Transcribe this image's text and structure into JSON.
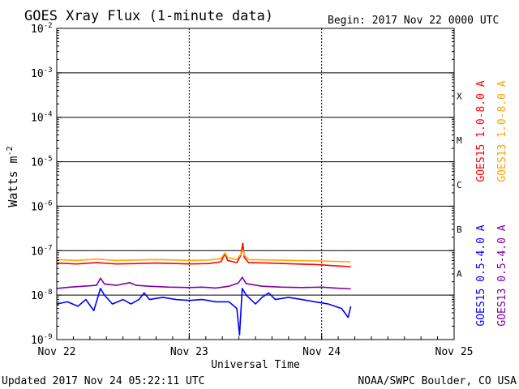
{
  "chart_data": {
    "type": "line",
    "title": "GOES Xray Flux (1-minute data)",
    "begin": "Begin:  2017 Nov 22 0000 UTC",
    "xlabel": "Universal Time",
    "ylabel": "Watts m",
    "ylabel_sup": "-2",
    "y_scale": "log",
    "ylim": [
      1e-09,
      0.01
    ],
    "xlim": [
      0,
      3
    ],
    "x_ticks": [
      {
        "x": 0,
        "label": "Nov 22"
      },
      {
        "x": 1,
        "label": "Nov 23"
      },
      {
        "x": 2,
        "label": "Nov 24"
      },
      {
        "x": 3,
        "label": "Nov 25"
      }
    ],
    "y_ticks": [
      {
        "exp": -9,
        "base": "10",
        "sup": "-9"
      },
      {
        "exp": -8,
        "base": "10",
        "sup": "-8"
      },
      {
        "exp": -7,
        "base": "10",
        "sup": "-7"
      },
      {
        "exp": -6,
        "base": "10",
        "sup": "-6"
      },
      {
        "exp": -5,
        "base": "10",
        "sup": "-5"
      },
      {
        "exp": -4,
        "base": "10",
        "sup": "-4"
      },
      {
        "exp": -3,
        "base": "10",
        "sup": "-3"
      },
      {
        "exp": -2,
        "base": "10",
        "sup": "-2"
      }
    ],
    "flare_classes": [
      {
        "label": "A",
        "exp": -7.5
      },
      {
        "label": "B",
        "exp": -6.5
      },
      {
        "label": "C",
        "exp": -5.5
      },
      {
        "label": "M",
        "exp": -4.5
      },
      {
        "label": "X",
        "exp": -3.5
      }
    ],
    "grid": true,
    "series": [
      {
        "name": "GOES15 1.0-8.0 A",
        "color": "#ff0000",
        "points": [
          [
            0,
            -7.28
          ],
          [
            0.15,
            -7.3
          ],
          [
            0.3,
            -7.27
          ],
          [
            0.45,
            -7.3
          ],
          [
            0.6,
            -7.29
          ],
          [
            0.75,
            -7.28
          ],
          [
            0.9,
            -7.29
          ],
          [
            1.0,
            -7.3
          ],
          [
            1.15,
            -7.29
          ],
          [
            1.24,
            -7.25
          ],
          [
            1.27,
            -7.07
          ],
          [
            1.29,
            -7.22
          ],
          [
            1.36,
            -7.27
          ],
          [
            1.39,
            -7.1
          ],
          [
            1.405,
            -6.83
          ],
          [
            1.415,
            -7.15
          ],
          [
            1.45,
            -7.27
          ],
          [
            1.6,
            -7.28
          ],
          [
            1.8,
            -7.3
          ],
          [
            1.95,
            -7.31
          ],
          [
            2.1,
            -7.34
          ],
          [
            2.22,
            -7.36
          ]
        ]
      },
      {
        "name": "GOES13 1.0-8.0 A",
        "color": "#ffa500",
        "points": [
          [
            0,
            -7.2
          ],
          [
            0.15,
            -7.22
          ],
          [
            0.3,
            -7.19
          ],
          [
            0.45,
            -7.22
          ],
          [
            0.6,
            -7.21
          ],
          [
            0.75,
            -7.2
          ],
          [
            0.9,
            -7.21
          ],
          [
            1.0,
            -7.22
          ],
          [
            1.15,
            -7.21
          ],
          [
            1.24,
            -7.18
          ],
          [
            1.27,
            -7.05
          ],
          [
            1.29,
            -7.15
          ],
          [
            1.36,
            -7.2
          ],
          [
            1.39,
            -7.08
          ],
          [
            1.405,
            -6.98
          ],
          [
            1.415,
            -7.1
          ],
          [
            1.45,
            -7.2
          ],
          [
            1.6,
            -7.21
          ],
          [
            1.8,
            -7.22
          ],
          [
            1.95,
            -7.23
          ],
          [
            2.1,
            -7.24
          ],
          [
            2.22,
            -7.25
          ]
        ]
      },
      {
        "name": "GOES13 0.5-4.0 A",
        "color": "#7f00a0",
        "points": [
          [
            0,
            -7.85
          ],
          [
            0.1,
            -7.82
          ],
          [
            0.2,
            -7.8
          ],
          [
            0.3,
            -7.78
          ],
          [
            0.33,
            -7.62
          ],
          [
            0.36,
            -7.75
          ],
          [
            0.45,
            -7.78
          ],
          [
            0.55,
            -7.72
          ],
          [
            0.6,
            -7.78
          ],
          [
            0.7,
            -7.8
          ],
          [
            0.85,
            -7.82
          ],
          [
            1.0,
            -7.83
          ],
          [
            1.1,
            -7.82
          ],
          [
            1.2,
            -7.84
          ],
          [
            1.3,
            -7.8
          ],
          [
            1.37,
            -7.73
          ],
          [
            1.4,
            -7.6
          ],
          [
            1.43,
            -7.74
          ],
          [
            1.55,
            -7.8
          ],
          [
            1.7,
            -7.82
          ],
          [
            1.85,
            -7.83
          ],
          [
            2.0,
            -7.82
          ],
          [
            2.1,
            -7.84
          ],
          [
            2.22,
            -7.86
          ]
        ]
      },
      {
        "name": "GOES15 0.5-4.0 A",
        "color": "#0000ff",
        "points": [
          [
            0,
            -8.2
          ],
          [
            0.08,
            -8.15
          ],
          [
            0.16,
            -8.25
          ],
          [
            0.22,
            -8.1
          ],
          [
            0.28,
            -8.35
          ],
          [
            0.33,
            -7.85
          ],
          [
            0.36,
            -8.0
          ],
          [
            0.42,
            -8.2
          ],
          [
            0.5,
            -8.1
          ],
          [
            0.56,
            -8.2
          ],
          [
            0.62,
            -8.1
          ],
          [
            0.66,
            -7.95
          ],
          [
            0.7,
            -8.1
          ],
          [
            0.8,
            -8.05
          ],
          [
            0.9,
            -8.1
          ],
          [
            1.0,
            -8.12
          ],
          [
            1.1,
            -8.1
          ],
          [
            1.2,
            -8.15
          ],
          [
            1.3,
            -8.15
          ],
          [
            1.36,
            -8.3
          ],
          [
            1.38,
            -8.9
          ],
          [
            1.4,
            -7.85
          ],
          [
            1.43,
            -8.0
          ],
          [
            1.5,
            -8.2
          ],
          [
            1.55,
            -8.05
          ],
          [
            1.6,
            -7.95
          ],
          [
            1.65,
            -8.1
          ],
          [
            1.75,
            -8.05
          ],
          [
            1.85,
            -8.1
          ],
          [
            1.95,
            -8.15
          ],
          [
            2.05,
            -8.2
          ],
          [
            2.15,
            -8.3
          ],
          [
            2.2,
            -8.5
          ],
          [
            2.22,
            -8.25
          ]
        ]
      }
    ]
  },
  "footer": {
    "updated": "Updated 2017 Nov 24 05:22:11 UTC",
    "credit": "NOAA/SWPC Boulder, CO USA"
  }
}
